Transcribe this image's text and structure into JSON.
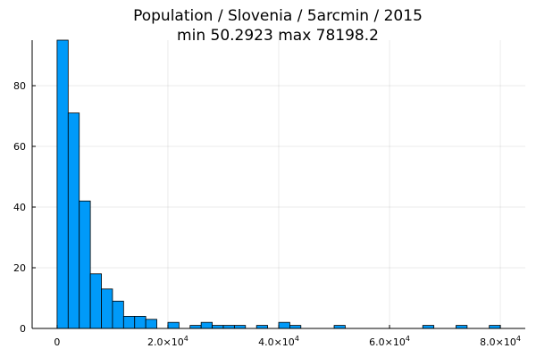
{
  "chart_data": {
    "type": "bar",
    "title": "Population / Slovenia / 5arcmin / 2015",
    "subtitle": "min 50.2923  max 78198.2",
    "xlabel": "",
    "ylabel": "",
    "x_ticks": [
      {
        "value": 0,
        "label": "0",
        "exp": ""
      },
      {
        "value": 20000,
        "label": "2.0×10",
        "exp": "4"
      },
      {
        "value": 40000,
        "label": "4.0×10",
        "exp": "4"
      },
      {
        "value": 60000,
        "label": "6.0×10",
        "exp": "4"
      },
      {
        "value": 80000,
        "label": "8.0×10",
        "exp": "4"
      }
    ],
    "y_ticks": [
      {
        "value": 0,
        "label": "0"
      },
      {
        "value": 20,
        "label": "20"
      },
      {
        "value": 40,
        "label": "40"
      },
      {
        "value": 60,
        "label": "60"
      },
      {
        "value": 80,
        "label": "80"
      }
    ],
    "xlim": [
      -4500,
      84500
    ],
    "ylim": [
      0,
      95
    ],
    "bin_width": 2000,
    "grid": true,
    "legend": false,
    "bar_color": "#009af9",
    "bins": [
      {
        "start": 0,
        "count": 95
      },
      {
        "start": 2000,
        "count": 71
      },
      {
        "start": 4000,
        "count": 42
      },
      {
        "start": 6000,
        "count": 18
      },
      {
        "start": 8000,
        "count": 13
      },
      {
        "start": 10000,
        "count": 9
      },
      {
        "start": 12000,
        "count": 4
      },
      {
        "start": 14000,
        "count": 4
      },
      {
        "start": 16000,
        "count": 3
      },
      {
        "start": 20000,
        "count": 2
      },
      {
        "start": 24000,
        "count": 1
      },
      {
        "start": 26000,
        "count": 2
      },
      {
        "start": 28000,
        "count": 1
      },
      {
        "start": 30000,
        "count": 1
      },
      {
        "start": 32000,
        "count": 1
      },
      {
        "start": 36000,
        "count": 1
      },
      {
        "start": 40000,
        "count": 2
      },
      {
        "start": 42000,
        "count": 1
      },
      {
        "start": 50000,
        "count": 1
      },
      {
        "start": 66000,
        "count": 1
      },
      {
        "start": 72000,
        "count": 1
      },
      {
        "start": 78000,
        "count": 1
      }
    ]
  }
}
